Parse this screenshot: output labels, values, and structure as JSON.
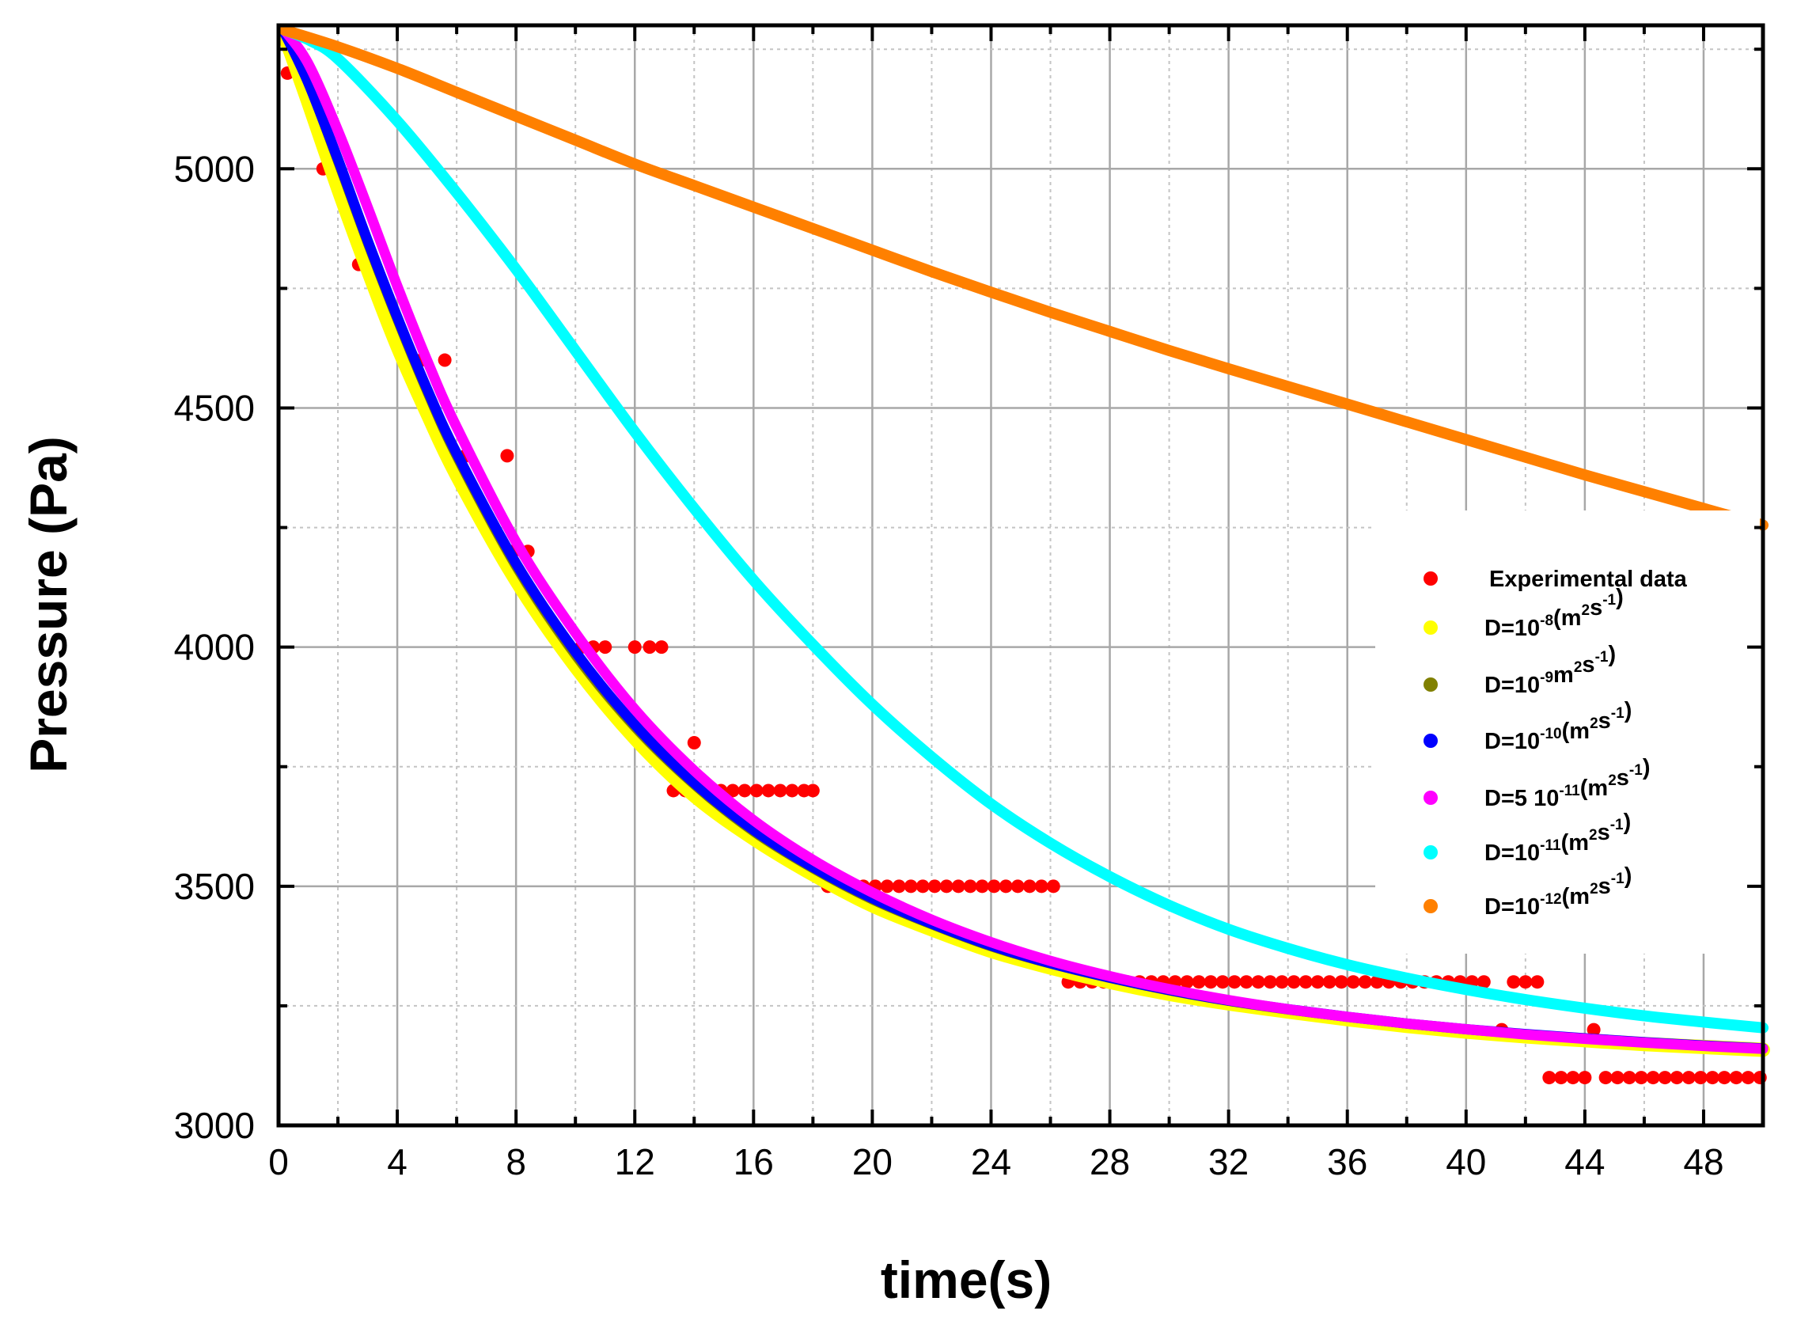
{
  "chart_data": {
    "type": "scatter",
    "title": "",
    "xlabel": "time(s)",
    "ylabel": "Pressure (Pa)",
    "xlim": [
      0,
      50
    ],
    "ylim": [
      3000,
      5300
    ],
    "grid": true,
    "legend_position": "right",
    "x_ticks": [
      0,
      4,
      8,
      12,
      16,
      20,
      24,
      28,
      32,
      36,
      40,
      44,
      48
    ],
    "x_tick_labels": [
      "0",
      "4",
      "8",
      "12",
      "16",
      "20",
      "24",
      "28",
      "32",
      "36",
      "40",
      "44",
      "48"
    ],
    "y_ticks": [
      3000,
      3500,
      4000,
      4500,
      5000
    ],
    "y_tick_labels": [
      "3000",
      "3500",
      "4000",
      "4500",
      "5000"
    ],
    "series": [
      {
        "name": "Experimental data",
        "legend_parts": [
          {
            "text": "Experimental data"
          }
        ],
        "color": "#ff0000",
        "kind": "points",
        "points": [
          [
            0.3,
            5200
          ],
          [
            1.5,
            5000
          ],
          [
            2.7,
            4800
          ],
          [
            3.1,
            4800
          ],
          [
            4.3,
            4600
          ],
          [
            4.8,
            4600
          ],
          [
            5.6,
            4600
          ],
          [
            5.9,
            4400
          ],
          [
            6.3,
            4400
          ],
          [
            7.7,
            4400
          ],
          [
            7.9,
            4200
          ],
          [
            8.4,
            4200
          ],
          [
            9.8,
            4000
          ],
          [
            10.2,
            4000
          ],
          [
            10.6,
            4000
          ],
          [
            11.0,
            4000
          ],
          [
            12.0,
            4000
          ],
          [
            12.5,
            4000
          ],
          [
            12.9,
            4000
          ],
          [
            13.3,
            3700
          ],
          [
            13.7,
            3700
          ],
          [
            14.0,
            3800
          ],
          [
            14.5,
            3700
          ],
          [
            14.9,
            3700
          ],
          [
            15.3,
            3700
          ],
          [
            15.7,
            3700
          ],
          [
            16.1,
            3700
          ],
          [
            16.5,
            3700
          ],
          [
            16.9,
            3700
          ],
          [
            17.3,
            3700
          ],
          [
            17.7,
            3700
          ],
          [
            18.0,
            3700
          ],
          [
            18.5,
            3500
          ],
          [
            18.9,
            3500
          ],
          [
            19.3,
            3500
          ],
          [
            19.7,
            3500
          ],
          [
            20.1,
            3500
          ],
          [
            20.5,
            3500
          ],
          [
            20.9,
            3500
          ],
          [
            21.3,
            3500
          ],
          [
            21.7,
            3500
          ],
          [
            22.1,
            3500
          ],
          [
            22.5,
            3500
          ],
          [
            22.9,
            3500
          ],
          [
            23.3,
            3500
          ],
          [
            23.7,
            3500
          ],
          [
            24.1,
            3500
          ],
          [
            24.5,
            3500
          ],
          [
            24.9,
            3500
          ],
          [
            25.3,
            3500
          ],
          [
            25.7,
            3500
          ],
          [
            26.1,
            3500
          ],
          [
            26.6,
            3300
          ],
          [
            27.0,
            3300
          ],
          [
            27.4,
            3300
          ],
          [
            27.8,
            3300
          ],
          [
            28.2,
            3300
          ],
          [
            28.6,
            3300
          ],
          [
            29.0,
            3300
          ],
          [
            29.4,
            3300
          ],
          [
            29.8,
            3300
          ],
          [
            30.2,
            3300
          ],
          [
            30.6,
            3300
          ],
          [
            31.0,
            3300
          ],
          [
            31.4,
            3300
          ],
          [
            31.8,
            3300
          ],
          [
            32.2,
            3300
          ],
          [
            32.6,
            3300
          ],
          [
            33.0,
            3300
          ],
          [
            33.4,
            3300
          ],
          [
            33.8,
            3300
          ],
          [
            34.2,
            3300
          ],
          [
            34.6,
            3300
          ],
          [
            35.0,
            3300
          ],
          [
            35.4,
            3300
          ],
          [
            35.8,
            3300
          ],
          [
            36.2,
            3300
          ],
          [
            36.6,
            3300
          ],
          [
            37.0,
            3300
          ],
          [
            37.4,
            3300
          ],
          [
            37.8,
            3300
          ],
          [
            38.2,
            3300
          ],
          [
            38.6,
            3300
          ],
          [
            39.0,
            3300
          ],
          [
            39.4,
            3300
          ],
          [
            39.8,
            3300
          ],
          [
            40.2,
            3300
          ],
          [
            40.6,
            3300
          ],
          [
            41.2,
            3200
          ],
          [
            41.6,
            3300
          ],
          [
            42.0,
            3300
          ],
          [
            42.4,
            3300
          ],
          [
            42.8,
            3100
          ],
          [
            43.2,
            3100
          ],
          [
            43.6,
            3100
          ],
          [
            44.0,
            3100
          ],
          [
            44.3,
            3200
          ],
          [
            44.7,
            3100
          ],
          [
            45.1,
            3100
          ],
          [
            45.5,
            3100
          ],
          [
            45.9,
            3100
          ],
          [
            46.3,
            3100
          ],
          [
            46.7,
            3100
          ],
          [
            47.1,
            3100
          ],
          [
            47.5,
            3100
          ],
          [
            47.9,
            3100
          ],
          [
            48.3,
            3100
          ],
          [
            48.7,
            3100
          ],
          [
            49.1,
            3100
          ],
          [
            49.5,
            3100
          ],
          [
            49.9,
            3100
          ]
        ]
      },
      {
        "name": "D=10-8(m2s-1)",
        "legend_parts": [
          {
            "text": "D=10"
          },
          {
            "text": "-8",
            "sup": true
          },
          {
            "text": "(m"
          },
          {
            "text": "2",
            "sup": true
          },
          {
            "text": "s"
          },
          {
            "text": "-1",
            "sup": true
          },
          {
            "text": ")"
          }
        ],
        "color": "#ffff00",
        "kind": "curve",
        "line_width": 18,
        "x": [
          0.2,
          1,
          2,
          3,
          4,
          5,
          6,
          8,
          10,
          12,
          14,
          16,
          18,
          20,
          22,
          24,
          26,
          28,
          30,
          32,
          34,
          36,
          38,
          40,
          42,
          44,
          46,
          48,
          50
        ],
        "y": [
          5280,
          5140,
          4960,
          4790,
          4630,
          4490,
          4360,
          4140,
          3960,
          3810,
          3690,
          3600,
          3525,
          3460,
          3410,
          3365,
          3330,
          3300,
          3275,
          3255,
          3238,
          3222,
          3208,
          3196,
          3186,
          3178,
          3170,
          3164,
          3158
        ]
      },
      {
        "name": "D=10-9m2s-1)",
        "legend_parts": [
          {
            "text": "D=10"
          },
          {
            "text": "-9",
            "sup": true
          },
          {
            "text": "m"
          },
          {
            "text": "2",
            "sup": true
          },
          {
            "text": "s"
          },
          {
            "text": "-1",
            "sup": true
          },
          {
            "text": ")"
          }
        ],
        "color": "#808000",
        "kind": "curve",
        "line_width": 10,
        "x": [
          0.2,
          1,
          2,
          3,
          4,
          5,
          6,
          8,
          10,
          12,
          14,
          16,
          18,
          20,
          22,
          24,
          26,
          28,
          30,
          32,
          34,
          36,
          38,
          40,
          42,
          44,
          46,
          48,
          50
        ],
        "y": [
          5285,
          5175,
          5010,
          4840,
          4680,
          4530,
          4395,
          4165,
          3980,
          3830,
          3710,
          3612,
          3535,
          3470,
          3418,
          3372,
          3336,
          3306,
          3280,
          3258,
          3240,
          3225,
          3211,
          3199,
          3189,
          3180,
          3172,
          3165,
          3160
        ]
      },
      {
        "name": "D=10-10(m2s-1)",
        "legend_parts": [
          {
            "text": "D=10"
          },
          {
            "text": "-10",
            "sup": true
          },
          {
            "text": "(m"
          },
          {
            "text": "2",
            "sup": true
          },
          {
            "text": "s"
          },
          {
            "text": "-1",
            "sup": true
          },
          {
            "text": ")"
          }
        ],
        "color": "#0000ff",
        "kind": "curve",
        "line_width": 13,
        "x": [
          0.2,
          1,
          2,
          3,
          4,
          5,
          6,
          8,
          10,
          12,
          14,
          16,
          18,
          20,
          22,
          24,
          26,
          28,
          30,
          32,
          34,
          36,
          38,
          40,
          42,
          44,
          46,
          48,
          50
        ],
        "y": [
          5285,
          5180,
          5020,
          4850,
          4690,
          4540,
          4405,
          4175,
          3990,
          3838,
          3716,
          3618,
          3540,
          3475,
          3422,
          3376,
          3339,
          3309,
          3283,
          3261,
          3243,
          3227,
          3213,
          3201,
          3191,
          3182,
          3174,
          3167,
          3161
        ]
      },
      {
        "name": "D=5 10-11(m2s-1)",
        "legend_parts": [
          {
            "text": "D=5 10"
          },
          {
            "text": "-11",
            "sup": true
          },
          {
            "text": "(m"
          },
          {
            "text": "2",
            "sup": true
          },
          {
            "text": "s"
          },
          {
            "text": "-1",
            "sup": true
          },
          {
            "text": ")"
          }
        ],
        "color": "#ff00ff",
        "kind": "curve",
        "line_width": 13,
        "x": [
          0.2,
          1,
          2,
          3,
          4,
          5,
          6,
          8,
          10,
          12,
          14,
          16,
          18,
          20,
          22,
          24,
          26,
          28,
          30,
          32,
          34,
          36,
          38,
          40,
          42,
          44,
          46,
          48,
          50
        ],
        "y": [
          5290,
          5220,
          5080,
          4920,
          4755,
          4600,
          4460,
          4220,
          4030,
          3870,
          3742,
          3638,
          3555,
          3487,
          3430,
          3383,
          3344,
          3312,
          3285,
          3262,
          3243,
          3227,
          3213,
          3201,
          3190,
          3181,
          3173,
          3166,
          3160
        ]
      },
      {
        "name": "D=10-11(m2s-1)",
        "legend_parts": [
          {
            "text": "D=10"
          },
          {
            "text": "-11",
            "sup": true
          },
          {
            "text": "(m"
          },
          {
            "text": "2",
            "sup": true
          },
          {
            "text": "s"
          },
          {
            "text": "-1",
            "sup": true
          },
          {
            "text": ")"
          }
        ],
        "color": "#00ffff",
        "kind": "curve",
        "line_width": 14,
        "x": [
          0.2,
          1,
          2,
          4,
          6,
          8,
          10,
          12,
          14,
          16,
          18,
          20,
          22,
          24,
          26,
          28,
          30,
          32,
          34,
          36,
          38,
          40,
          42,
          44,
          46,
          48,
          50
        ],
        "y": [
          5290,
          5270,
          5230,
          5100,
          4950,
          4790,
          4620,
          4450,
          4290,
          4140,
          4005,
          3880,
          3770,
          3672,
          3590,
          3520,
          3460,
          3410,
          3370,
          3336,
          3308,
          3284,
          3263,
          3245,
          3229,
          3216,
          3204
        ]
      },
      {
        "name": "D=10-12(m2s-1)",
        "legend_parts": [
          {
            "text": "D=10"
          },
          {
            "text": "-12",
            "sup": true
          },
          {
            "text": "(m"
          },
          {
            "text": "2",
            "sup": true
          },
          {
            "text": "s"
          },
          {
            "text": "-1",
            "sup": true
          },
          {
            "text": ")"
          }
        ],
        "color": "#ff8000",
        "kind": "curve",
        "line_width": 14,
        "x": [
          0.2,
          2,
          4,
          6,
          8,
          10,
          12,
          14,
          16,
          18,
          20,
          22,
          24,
          26,
          28,
          30,
          32,
          34,
          36,
          38,
          40,
          42,
          44,
          46,
          48,
          50
        ],
        "y": [
          5290,
          5255,
          5210,
          5160,
          5110,
          5060,
          5010,
          4965,
          4920,
          4875,
          4830,
          4785,
          4742,
          4700,
          4660,
          4620,
          4582,
          4545,
          4508,
          4471,
          4434,
          4397,
          4360,
          4325,
          4290,
          4255
        ]
      }
    ]
  }
}
